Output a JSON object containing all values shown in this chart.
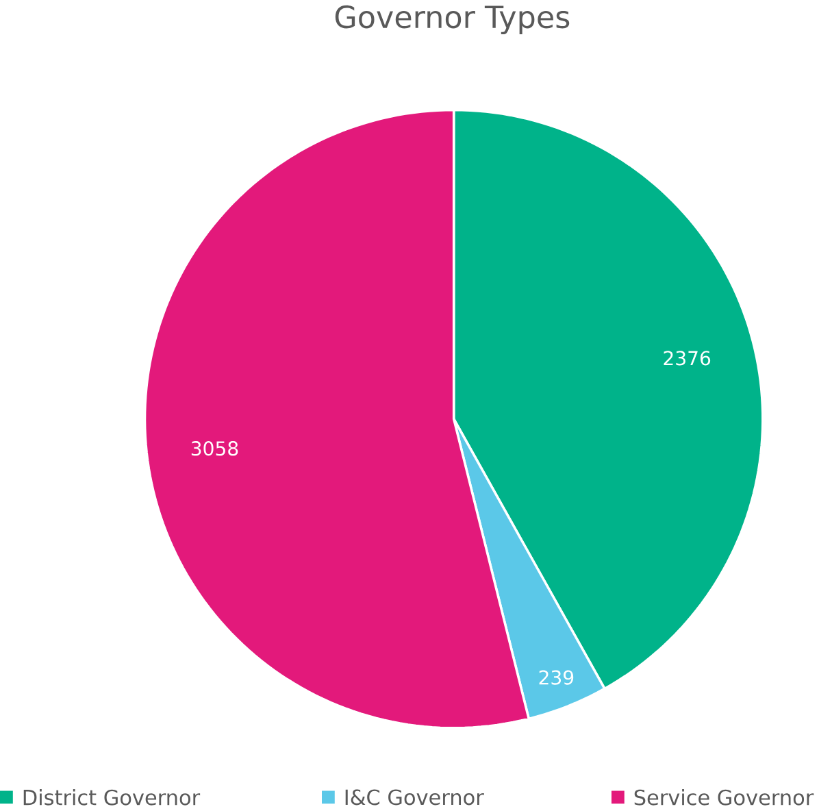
{
  "chart_data": {
    "type": "pie",
    "title": "Governor Types",
    "categories": [
      "District Governor",
      "I&C Governor",
      "Service Governor"
    ],
    "values": [
      2376,
      239,
      3058
    ],
    "colors": [
      "#00b38a",
      "#5bc8e8",
      "#e3197b"
    ],
    "data_labels": true,
    "legend": "bottom"
  }
}
